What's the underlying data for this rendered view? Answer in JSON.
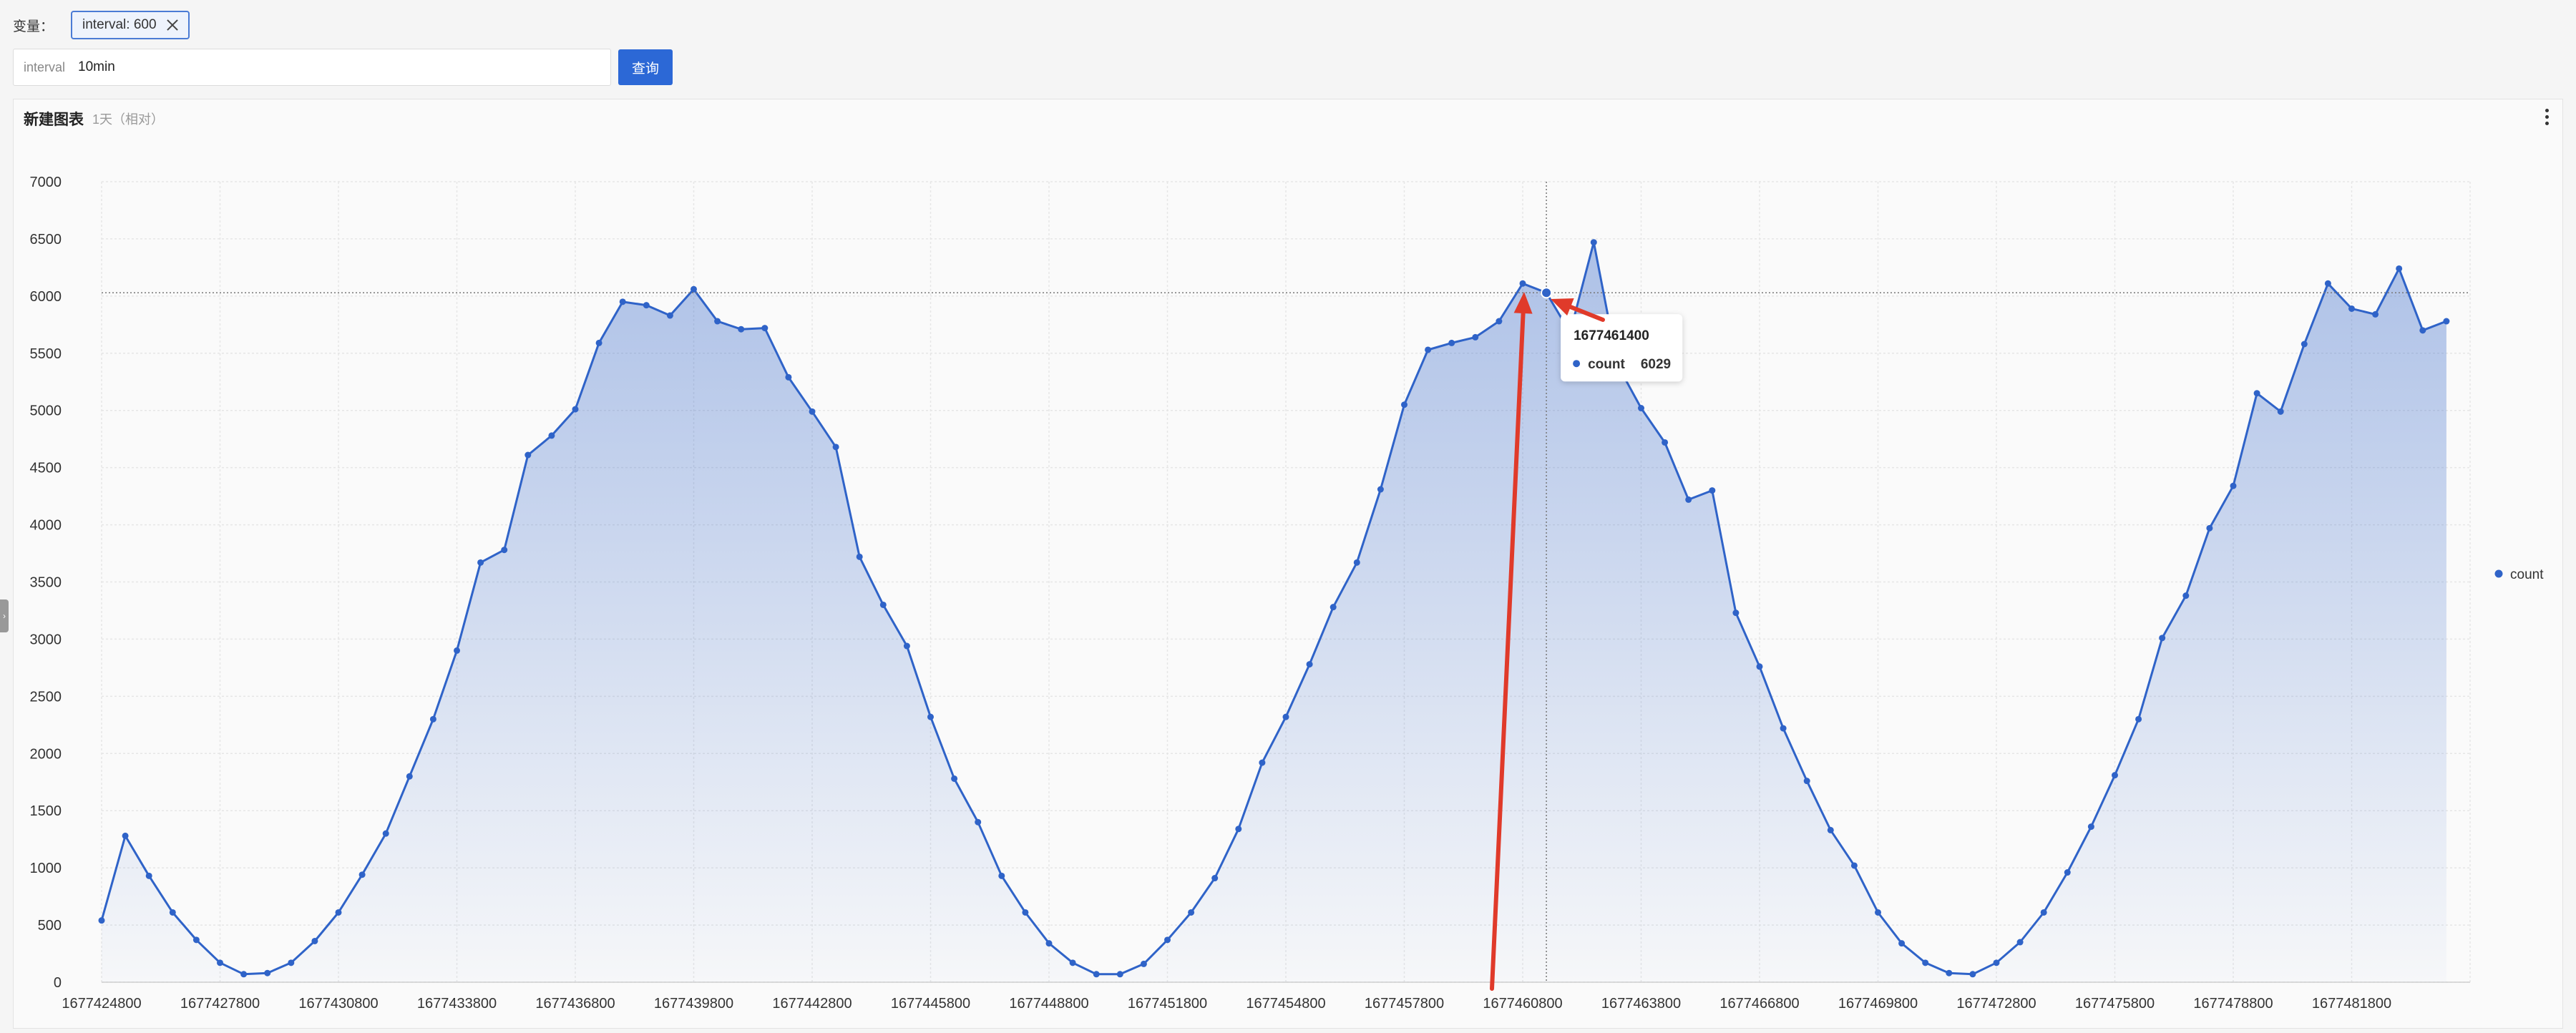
{
  "variables": {
    "label": "变量：",
    "tag_text": "interval: 600"
  },
  "query": {
    "field_label": "interval",
    "field_value": "10min",
    "button_label": "查询"
  },
  "panel": {
    "title": "新建图表",
    "subtitle": "1天（相对）"
  },
  "chart_data": {
    "type": "area",
    "x_ticks": [
      "1677424800",
      "1677427800",
      "1677430800",
      "1677433800",
      "1677436800",
      "1677439800",
      "1677442800",
      "1677445800",
      "1677448800",
      "1677451800",
      "1677454800",
      "1677457800",
      "1677460800",
      "1677463800",
      "1677466800",
      "1677469800",
      "1677472800",
      "1677475800",
      "1677478800",
      "1677481800"
    ],
    "xlim": [
      1677424800,
      1677484800
    ],
    "x_start": 1677424800,
    "x_step": 600,
    "ylim": [
      0,
      7000
    ],
    "y_ticks": [
      0,
      500,
      1000,
      1500,
      2000,
      2500,
      3000,
      3500,
      4000,
      4500,
      5000,
      5500,
      6000,
      6500,
      7000
    ],
    "grid": true,
    "legend_position": "right",
    "series": [
      {
        "name": "count",
        "color": "#2f63c8",
        "values": [
          540,
          1280,
          930,
          610,
          370,
          170,
          70,
          80,
          170,
          360,
          610,
          940,
          1300,
          1800,
          2300,
          2900,
          3670,
          3780,
          4610,
          4780,
          5010,
          5590,
          5950,
          5920,
          5830,
          6060,
          5780,
          5710,
          5720,
          5290,
          4990,
          4680,
          3720,
          3300,
          2940,
          2320,
          1780,
          1400,
          930,
          610,
          340,
          170,
          70,
          70,
          160,
          370,
          610,
          910,
          1340,
          1920,
          2320,
          2780,
          3280,
          3670,
          4310,
          5050,
          5530,
          5590,
          5640,
          5780,
          6110,
          6029,
          5680,
          6470,
          5400,
          5020,
          4720,
          4220,
          4300,
          3230,
          2760,
          2220,
          1760,
          1330,
          1020,
          610,
          340,
          170,
          80,
          70,
          170,
          350,
          610,
          960,
          1360,
          1810,
          2300,
          3010,
          3380,
          3970,
          4340,
          5150,
          4990,
          5580,
          6110,
          5890,
          5840,
          6240,
          5700,
          5780
        ]
      }
    ],
    "tooltip": {
      "x": "1677461400",
      "series": "count",
      "value": "6029"
    },
    "annotation_color": "#e03a2a"
  }
}
